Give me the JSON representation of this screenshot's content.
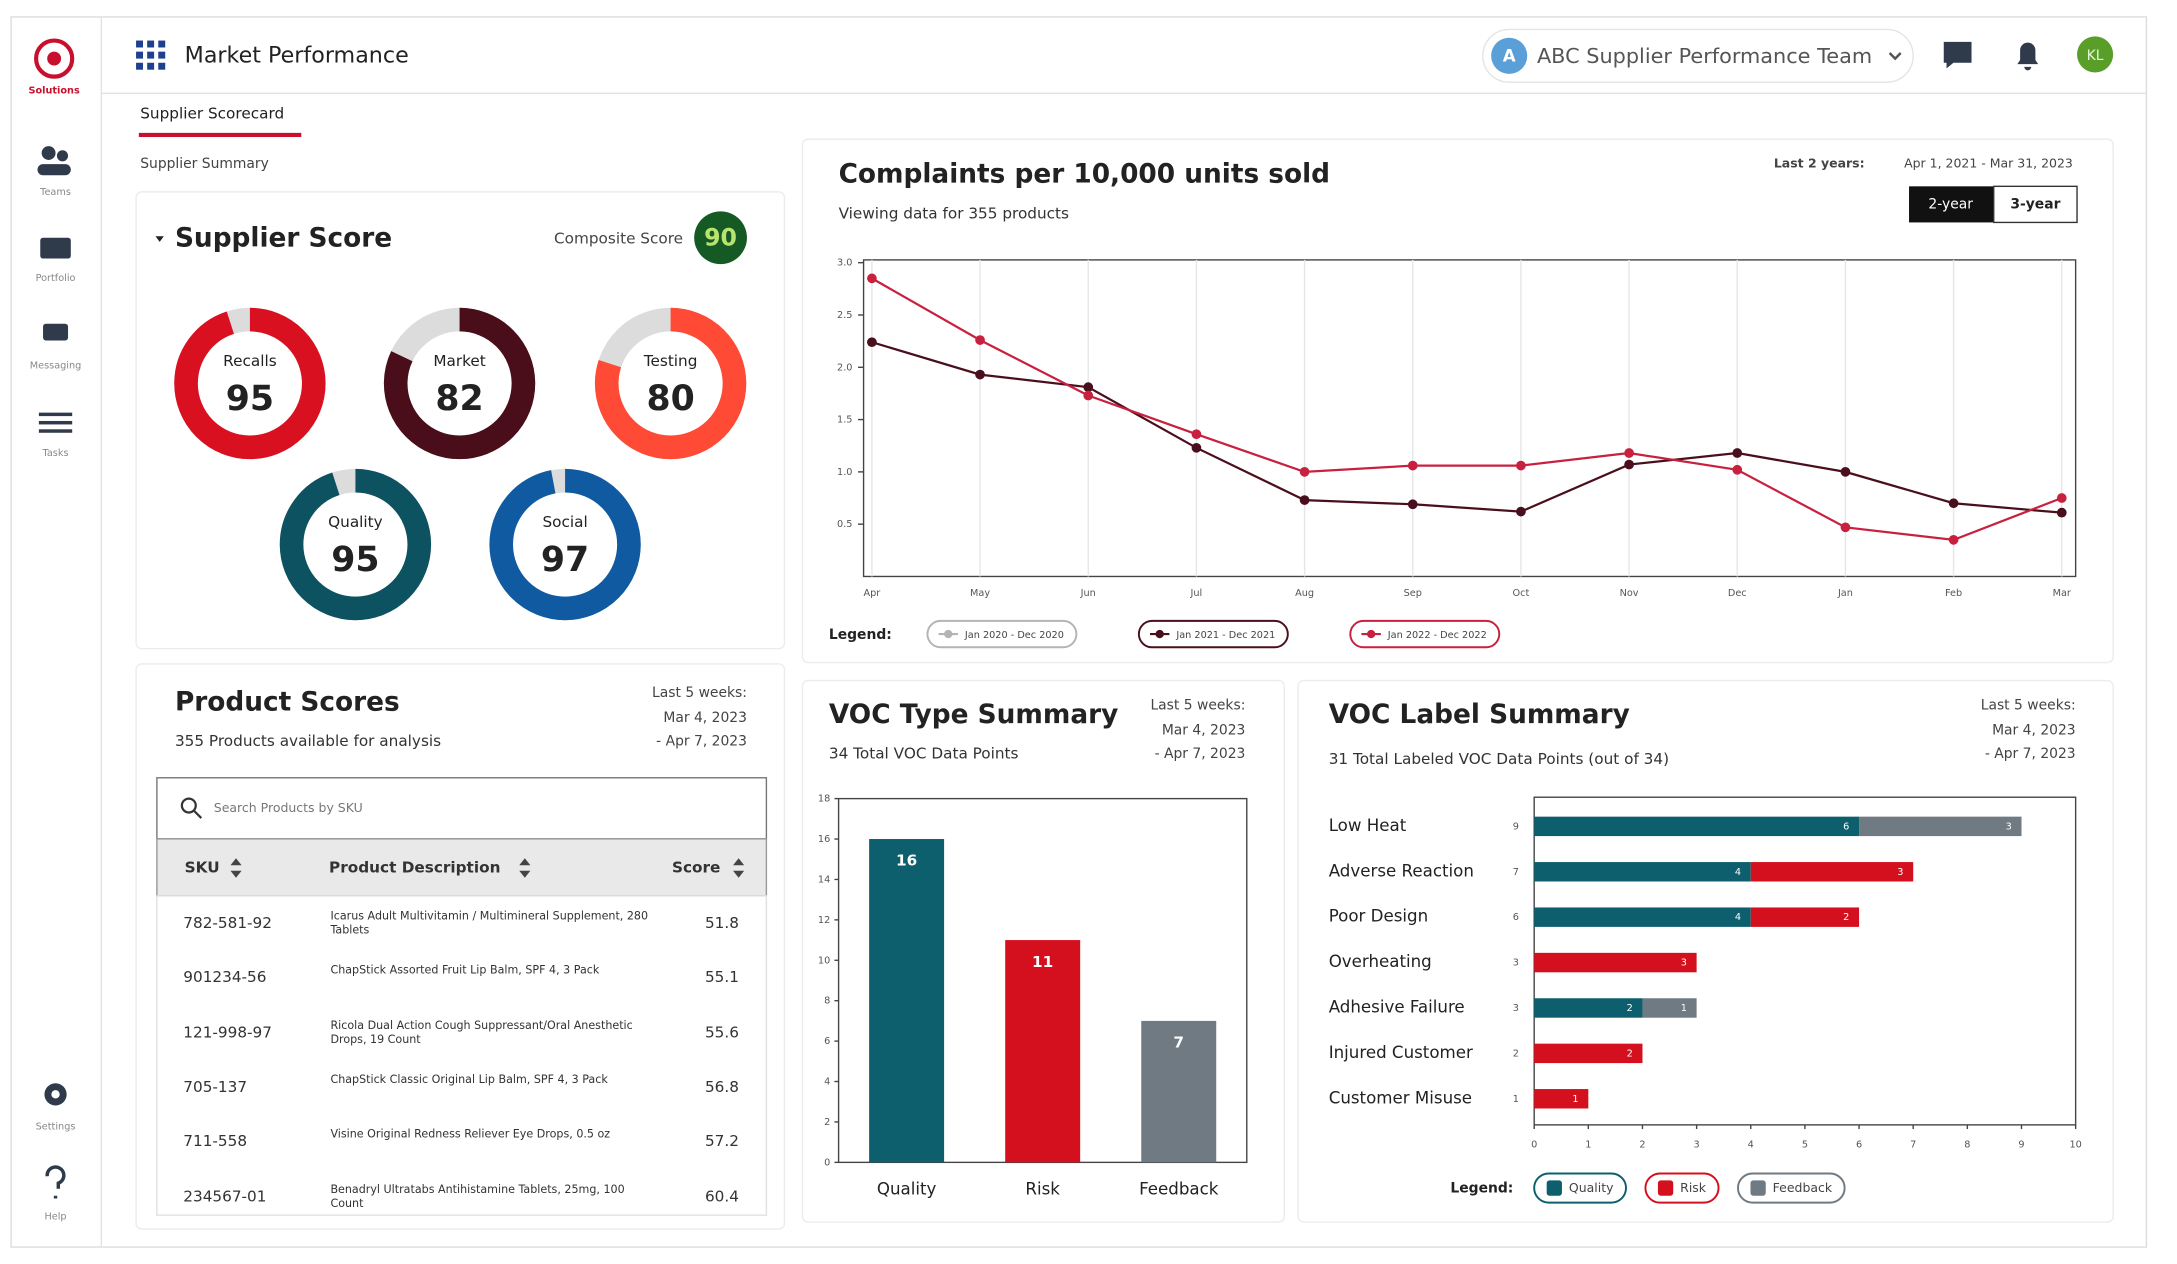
{
  "sidebar": {
    "logo": "Solutions",
    "nav": [
      "Teams",
      "Portfolio",
      "Messaging",
      "Tasks"
    ],
    "footer_nav": [
      "Settings",
      "Help"
    ]
  },
  "header": {
    "title": "Market Performance",
    "team_initial": "A",
    "team": "ABC Supplier Performance Team",
    "user_initials": "KL"
  },
  "tabs": {
    "active": "Supplier Scorecard",
    "secondary": "Supplier Summary"
  },
  "products": {
    "title": "Product Scores",
    "subtitle": "355 Products available for analysis",
    "period_label": "Last 5 weeks:",
    "period_start": "Mar 4, 2023",
    "period_end": "- Apr 7, 2023",
    "search_placeholder": "Search Products by SKU",
    "columns": [
      "SKU",
      "Product Description",
      "Score"
    ],
    "rows": [
      [
        "782-581-92",
        "Icarus Adult Multivitamin / Multimineral Supplement, 280 Tablets",
        51.8
      ],
      [
        "901234-56",
        "ChapStick Assorted Fruit Lip Balm, SPF 4, 3 Pack",
        55.1
      ],
      [
        "121-998-97",
        "Ricola Dual Action Cough Suppressant/Oral Anesthetic Drops, 19 Count",
        55.6
      ],
      [
        "705-137",
        "ChapStick Classic Original Lip Balm, SPF 4, 3 Pack",
        56.8
      ],
      [
        "711-558",
        "Visine Original Redness Reliever Eye Drops, 0.5 oz",
        57.2
      ],
      [
        "234567-01",
        "Benadryl Ultratabs Antihistamine Tablets, 25mg, 100 Count",
        60.4
      ]
    ]
  },
  "chart_data": [
    {
      "type": "donut",
      "title": "Supplier Score",
      "composite_label": "Composite Score",
      "composite_value": 90,
      "categories": [
        "Recalls",
        "Market",
        "Testing",
        "Quality",
        "Social"
      ],
      "values": [
        95,
        82,
        80,
        95,
        97
      ],
      "colors": [
        "#d8101f",
        "#4a0d1a",
        "#ff4a36",
        "#0d5260",
        "#0f5aa0"
      ],
      "ylim": [
        0,
        100
      ]
    },
    {
      "type": "line",
      "title": "Complaints per 10,000 units sold",
      "subtitle": "Viewing data for 355 products",
      "period_label": "Last 2 years:",
      "period": "Apr 1, 2021 - Mar 31, 2023",
      "range_options": [
        "2-year",
        "3-year"
      ],
      "legend_title": "Legend:",
      "categories": [
        "Apr",
        "May",
        "Jun",
        "Jul",
        "Aug",
        "Sep",
        "Oct",
        "Nov",
        "Dec",
        "Jan",
        "Feb",
        "Mar"
      ],
      "series": [
        {
          "name": "Jan 2020 - Dec 2020",
          "color": "#b4b4b4",
          "values": [
            null,
            null,
            null,
            null,
            null,
            null,
            null,
            null,
            null,
            null,
            null,
            null
          ]
        },
        {
          "name": "Jan 2021 - Dec 2021",
          "color": "#4a0f1c",
          "values": [
            2.24,
            1.93,
            1.81,
            1.23,
            0.73,
            0.69,
            0.62,
            1.07,
            1.18,
            1.0,
            0.7,
            0.61
          ]
        },
        {
          "name": "Jan 2022 - Dec 2022",
          "color": "#c8203f",
          "values": [
            2.85,
            2.26,
            1.73,
            1.36,
            1.0,
            1.06,
            1.06,
            1.18,
            1.02,
            0.47,
            0.35,
            0.75
          ]
        }
      ],
      "ylim": [
        0,
        3
      ],
      "yticks": [
        0.5,
        {
          "value": 1,
          "label": "1.0"
        },
        1.5,
        {
          "value": 2,
          "label": "2.0"
        },
        2.5,
        {
          "value": 3,
          "label": "3.0"
        }
      ],
      "grid": true
    },
    {
      "type": "bar",
      "title": "VOC Type Summary",
      "subtitle": "34 Total VOC Data Points",
      "period_label": "Last 5 weeks:",
      "period_start": "Mar 4, 2023",
      "period_end": "- Apr 7, 2023",
      "categories": [
        "Quality",
        "Risk",
        "Feedback"
      ],
      "values": [
        16,
        11,
        7
      ],
      "colors": [
        "#0e5f6e",
        "#d4101e",
        "#6f7a82"
      ],
      "ylim": [
        0,
        18
      ],
      "yticks": [
        0,
        2,
        4,
        6,
        8,
        10,
        12,
        14,
        16,
        18
      ]
    },
    {
      "type": "hbar",
      "title": "VOC Label Summary",
      "subtitle": "31 Total Labeled VOC Data Points (out of 34)",
      "period_label": "Last 5 weeks:",
      "period_start": "Mar 4, 2023",
      "period_end": "- Apr 7, 2023",
      "legend_title": "Legend:",
      "categories": [
        "Low Heat",
        "Adverse Reaction",
        "Poor Design",
        "Overheating",
        "Adhesive Failure",
        "Injured Customer",
        "Customer Misuse"
      ],
      "totals": [
        9,
        7,
        6,
        3,
        3,
        2,
        1
      ],
      "series": [
        {
          "name": "Quality",
          "color": "#0e5f6e",
          "values": [
            6,
            4,
            4,
            null,
            2,
            null,
            null
          ]
        },
        {
          "name": "Risk",
          "color": "#d4101e",
          "values": [
            null,
            3,
            2,
            3,
            null,
            2,
            1
          ]
        },
        {
          "name": "Feedback",
          "color": "#6f7a82",
          "values": [
            3,
            null,
            null,
            null,
            1,
            null,
            null
          ]
        }
      ],
      "xlim": [
        0,
        10
      ],
      "xticks": [
        0,
        1,
        2,
        3,
        4,
        5,
        6,
        7,
        8,
        9,
        10
      ]
    }
  ]
}
